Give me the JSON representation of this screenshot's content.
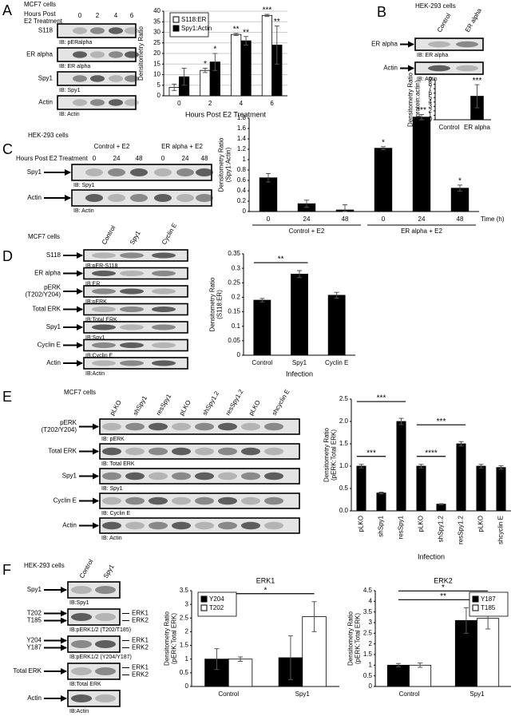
{
  "panels": [
    {
      "letter": "A",
      "cells": "MCF7 cells",
      "header": [
        "Hours Post",
        "E2 Treatment"
      ],
      "lanes": [
        "0",
        "2",
        "4",
        "6"
      ],
      "rows": [
        {
          "name": [
            "S118"
          ],
          "ib": "IB: pERalpha"
        },
        {
          "name": [
            "ER alpha"
          ],
          "ib": "IB: ER alpha"
        },
        {
          "name": [
            "Spy1"
          ],
          "ib": "IB: Spy1"
        },
        {
          "name": [
            "Actin"
          ],
          "ib": "IB: Actin"
        }
      ]
    },
    {
      "letter": "B",
      "cells": "HEK-293 cells",
      "lanes": [
        "Control",
        "ER alpha"
      ],
      "rows": [
        {
          "name": [
            "ER alpha"
          ],
          "ib": "IB: ER alpha"
        },
        {
          "name": [
            "Actin"
          ],
          "ib": "IB: Actin"
        }
      ]
    },
    {
      "letter": "C",
      "cells": "HEK-293 cells",
      "groups": [
        "Control + E2",
        "ER alpha + E2"
      ],
      "header": [
        "Hours Post E2 Treatment"
      ],
      "lanes": [
        "0",
        "24",
        "48",
        "0",
        "24",
        "48"
      ],
      "rows": [
        {
          "name": [
            "Spy1"
          ],
          "ib": "IB: Spy1"
        },
        {
          "name": [
            "Actin"
          ],
          "ib": "IB: Actin"
        }
      ]
    },
    {
      "letter": "D",
      "cells": "MCF7 cells",
      "lanes": [
        "Control",
        "Spy1",
        "Cyclin E"
      ],
      "rows": [
        {
          "name": [
            "S118"
          ],
          "ib": "IB:pER-S118"
        },
        {
          "name": [
            "ER alpha"
          ],
          "ib": "IB:ER"
        },
        {
          "name": [
            "pERK",
            "(T202/Y204)"
          ],
          "ib": "IB:pERK"
        },
        {
          "name": [
            "Total ERK"
          ],
          "ib": "IB:Total ERK"
        },
        {
          "name": [
            "Spy1"
          ],
          "ib": "IB:Spy1"
        },
        {
          "name": [
            "Cyclin E"
          ],
          "ib": "IB:Cyclin E"
        },
        {
          "name": [
            "Actin"
          ],
          "ib": "IB:Actin"
        }
      ]
    },
    {
      "letter": "E",
      "cells": "MCF7 cells",
      "lanes": [
        "pLKO",
        "shSpy1",
        "resSpy1",
        "pLKO",
        "shSpy1.2",
        "resSpy1.2",
        "pLKO",
        "shcyclin E"
      ],
      "rows": [
        {
          "name": [
            "pERK",
            "(T202/Y204)"
          ],
          "ib": "IB: pERK"
        },
        {
          "name": [
            "Total ERK"
          ],
          "ib": "IB: Total ERK"
        },
        {
          "name": [
            "Spy1"
          ],
          "ib": "IB: Spy1"
        },
        {
          "name": [
            "Cyclin E"
          ],
          "ib": "IB: Cyclin E"
        },
        {
          "name": [
            "Actin"
          ],
          "ib": "IB: Actin"
        }
      ]
    },
    {
      "letter": "F",
      "cells": "HEK-293 cells",
      "lanes": [
        "Control",
        "Spy1"
      ],
      "rows": [
        {
          "names": [
            "Spy1"
          ],
          "ib": "IB:Spy1"
        },
        {
          "names": [
            "T202",
            "T185"
          ],
          "right": [
            "ERK1",
            "ERK2"
          ],
          "ib": "IB:pERK1/2 (T202/T185)"
        },
        {
          "names": [
            "Y204",
            "Y187"
          ],
          "right": [
            "ERK1",
            "ERK2"
          ],
          "ib": "IB:pERK1/2 (Y204/Y187)"
        },
        {
          "names": [
            "Total ERK"
          ],
          "right": [
            "ERK1",
            "ERK2"
          ],
          "ib": "IB:Total ERK"
        },
        {
          "names": [
            "Actin"
          ],
          "ib": "IB:Actin"
        }
      ]
    }
  ],
  "chart_data": [
    {
      "type": "bar",
      "xlabel": "Hours Post E2 Treatment",
      "ylabel": [
        "Densitometry Ratio"
      ],
      "categories": [
        "0",
        "2",
        "4",
        "6"
      ],
      "series": [
        {
          "name": "S118:ER",
          "color": "#ffffff",
          "values": [
            4,
            12,
            29,
            38
          ],
          "errors": [
            1.5,
            1,
            0.5,
            0.5
          ],
          "annotations": [
            null,
            "*",
            "**",
            "***"
          ]
        },
        {
          "name": "Spy1:Actin",
          "color": "#000000",
          "values": [
            9,
            16,
            26,
            24
          ],
          "errors": [
            4,
            4,
            2,
            9
          ],
          "annotations": [
            null,
            "*",
            "**",
            "**"
          ]
        }
      ],
      "ylim": [
        0,
        40
      ],
      "yticks": [
        0,
        5,
        10,
        15,
        20,
        25,
        30,
        35,
        40
      ],
      "grid": true,
      "legend": "upper left"
    },
    {
      "type": "bar",
      "ylabel": [
        "Densitometry Ratio",
        "(protein:actin)"
      ],
      "categories": [
        "Control",
        "ER alpha"
      ],
      "values": [
        0,
        5.3
      ],
      "errors": [
        null,
        2.6
      ],
      "annotations": [
        null,
        "***"
      ],
      "color": "#000000",
      "ylim": [
        0,
        9
      ],
      "yticks": [
        0,
        1,
        2,
        3,
        4,
        5,
        6,
        7,
        8,
        9
      ],
      "grid": false
    },
    {
      "type": "bar",
      "ylabel": [
        "Densitometry Ratio",
        "(Spy1:Actin)"
      ],
      "categories": [
        "0",
        "24",
        "48",
        "0",
        "24",
        "48"
      ],
      "groups": [
        {
          "label": "Control + E2",
          "from": 0,
          "to": 2
        },
        {
          "label": "ER alpha + E2",
          "from": 3,
          "to": 5
        }
      ],
      "xunit": "Time (h)",
      "values": [
        0.65,
        0.15,
        0.03,
        1.22,
        1.82,
        0.45
      ],
      "errors": [
        0.08,
        0.07,
        0.1,
        0.03,
        0.05,
        0.06
      ],
      "annotations": [
        null,
        null,
        null,
        "*",
        "***",
        "*"
      ],
      "color": "#000000",
      "ylim": [
        0,
        1.8
      ],
      "yticks": [
        0,
        0.2,
        0.4,
        0.6,
        0.8,
        1,
        1.2,
        1.4,
        1.6,
        1.8
      ],
      "grid": false
    },
    {
      "type": "bar",
      "xlabel": "Infection",
      "ylabel": [
        "Densitometry Ratio",
        "(S118:ER)"
      ],
      "categories": [
        "Control",
        "Spy1",
        "Cyclin E"
      ],
      "values": [
        0.19,
        0.28,
        0.207
      ],
      "errors": [
        0.006,
        0.012,
        0.01
      ],
      "color": "#000000",
      "ylim": [
        0,
        0.35
      ],
      "yticks": [
        0,
        0.05,
        0.1,
        0.15,
        0.2,
        0.25,
        0.3,
        0.35
      ],
      "brackets": [
        {
          "from": 0,
          "to": 1,
          "label": "**"
        }
      ],
      "grid": false
    },
    {
      "type": "bar",
      "xlabel": "Infection",
      "ylabel": [
        "Densitometry Ratio",
        "(pERK:Total ERK)"
      ],
      "categories": [
        "pLKO",
        "shSpy1",
        "resSpy1",
        "pLKO",
        "shSpy1.2",
        "resSpy1.2",
        "pLKO",
        "shcyclin E"
      ],
      "values": [
        1.0,
        0.4,
        2.0,
        1.0,
        0.15,
        1.5,
        1.0,
        0.97
      ],
      "errors": [
        0.04,
        0.02,
        0.07,
        0.04,
        0.01,
        0.05,
        0.04,
        0.04
      ],
      "color": "#000000",
      "ylim": [
        0,
        2.5
      ],
      "yticks": [
        {
          "value": 0,
          "label": "0.0"
        },
        {
          "value": 0.5,
          "label": "0.5"
        },
        {
          "value": 1,
          "label": "1.0"
        },
        {
          "value": 1.5,
          "label": "1.5"
        },
        {
          "value": 2,
          "label": "2.0"
        },
        {
          "value": 2.5,
          "label": "2.5"
        }
      ],
      "brackets": [
        {
          "from": 0,
          "to": 1,
          "label": "***"
        },
        {
          "from": 0,
          "to": 2,
          "label": "***"
        },
        {
          "from": 3,
          "to": 4,
          "label": "****"
        },
        {
          "from": 3,
          "to": 5,
          "label": "***"
        }
      ],
      "grid": false
    },
    {
      "type": "bar",
      "title": "ERK1",
      "ylabel": [
        "Densitometry Ratio",
        "(pERK:Total ERK)"
      ],
      "categories": [
        "Control",
        "Spy1"
      ],
      "series": [
        {
          "name": "Y204",
          "color": "#000000",
          "values": [
            1.0,
            1.05
          ],
          "errors": [
            0.38,
            0.8
          ]
        },
        {
          "name": "T202",
          "color": "#ffffff",
          "values": [
            1.0,
            2.55
          ],
          "errors": [
            0.08,
            0.55
          ]
        }
      ],
      "ylim": [
        0,
        3.5
      ],
      "yticks": [
        0,
        0.5,
        1,
        1.5,
        2,
        2.5,
        3,
        3.5
      ],
      "brackets": [
        {
          "from": 0,
          "to": 1,
          "label": "*"
        }
      ],
      "grid": false,
      "legend": "upper left"
    },
    {
      "type": "bar",
      "title": "ERK2",
      "ylabel": [
        "Densitometry Ratio",
        "(pERK:Total ERK)"
      ],
      "categories": [
        "Control",
        "Spy1"
      ],
      "series": [
        {
          "name": "Y187",
          "color": "#000000",
          "values": [
            1.0,
            3.1
          ],
          "errors": [
            0.08,
            0.6
          ]
        },
        {
          "name": "T185",
          "color": "#ffffff",
          "values": [
            1.0,
            3.2
          ],
          "errors": [
            0.1,
            0.5
          ]
        }
      ],
      "ylim": [
        0,
        4.5
      ],
      "yticks": [
        0,
        0.5,
        1,
        1.5,
        2,
        2.5,
        3,
        3.5,
        4,
        4.5
      ],
      "brackets": [
        {
          "from": 0,
          "to": 1,
          "label": "**"
        },
        {
          "from": 0,
          "to": 1,
          "label": "*"
        }
      ],
      "grid": false,
      "legend": "upper right"
    }
  ]
}
